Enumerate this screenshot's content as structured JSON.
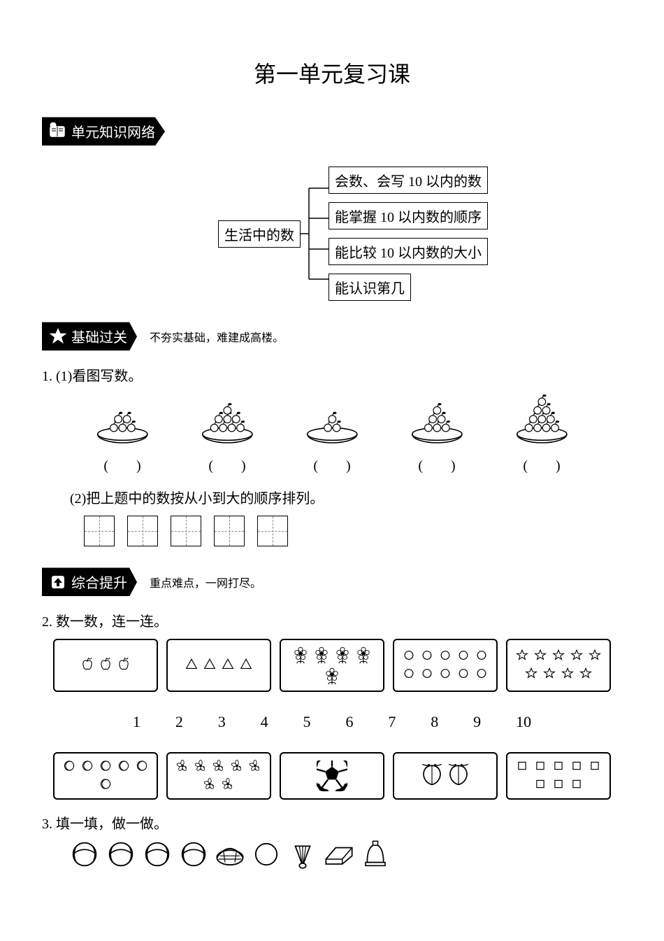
{
  "title": "第一单元复习课",
  "sections": {
    "knowledge": {
      "label": "单元知识网络",
      "sub": ""
    },
    "basics": {
      "label": "基础过关",
      "sub": "不夯实基础，难建成高楼。"
    },
    "advanced": {
      "label": "综合提升",
      "sub": "重点难点，一网打尽。"
    }
  },
  "tree": {
    "root": "生活中的数",
    "leaves": [
      "会数、会写 10 以内的数",
      "能掌握 10 以内数的顺序",
      "能比较 10 以内数的大小",
      "能认识第几"
    ]
  },
  "q1": {
    "num": "1.",
    "part1_label": "(1)看图写数。",
    "plates": [
      5,
      8,
      3,
      6,
      10
    ],
    "paren_template": "(　　)",
    "part2_label": "(2)把上题中的数按从小到大的顺序排列。",
    "sort_box_count": 5
  },
  "q2": {
    "num": "2.",
    "label": "数一数，连一连。",
    "numbers": [
      1,
      2,
      3,
      4,
      5,
      6,
      7,
      8,
      9,
      10
    ],
    "top_boxes": [
      {
        "glyph": "apple",
        "count": 3
      },
      {
        "glyph": "triangle",
        "count": 4
      },
      {
        "glyph": "flower",
        "count": 5
      },
      {
        "glyph": "circle",
        "count": 10
      },
      {
        "glyph": "star",
        "count": 9
      }
    ],
    "bottom_boxes": [
      {
        "glyph": "moon",
        "count": 6
      },
      {
        "glyph": "blossom",
        "count": 7
      },
      {
        "glyph": "soccer",
        "count": 1
      },
      {
        "glyph": "peach",
        "count": 2
      },
      {
        "glyph": "square",
        "count": 8
      }
    ]
  },
  "q3": {
    "num": "3.",
    "label": "填一填，做一做。",
    "toys": [
      "ball",
      "ball",
      "ball",
      "ball",
      "basket",
      "ring",
      "shuttle",
      "eraser",
      "bell"
    ]
  },
  "style": {
    "stroke": "#000000",
    "fill_white": "#ffffff",
    "title_fontsize": 32,
    "body_fontsize": 20
  }
}
